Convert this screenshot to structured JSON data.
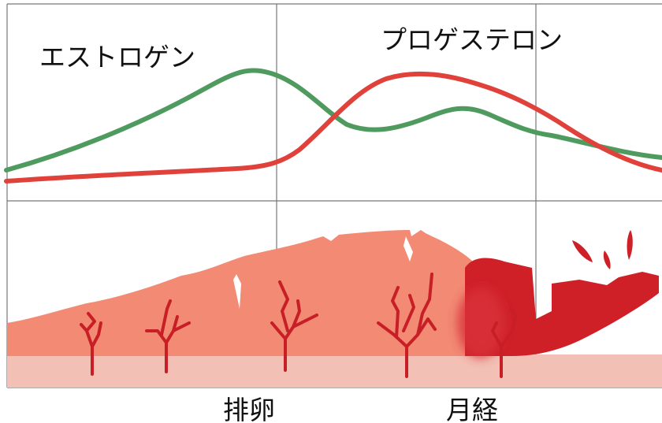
{
  "labels": {
    "estrogen": "エストロゲン",
    "progesterone": "プロゲステロン",
    "ovulation": "排卵",
    "menstruation": "月経"
  }
}
